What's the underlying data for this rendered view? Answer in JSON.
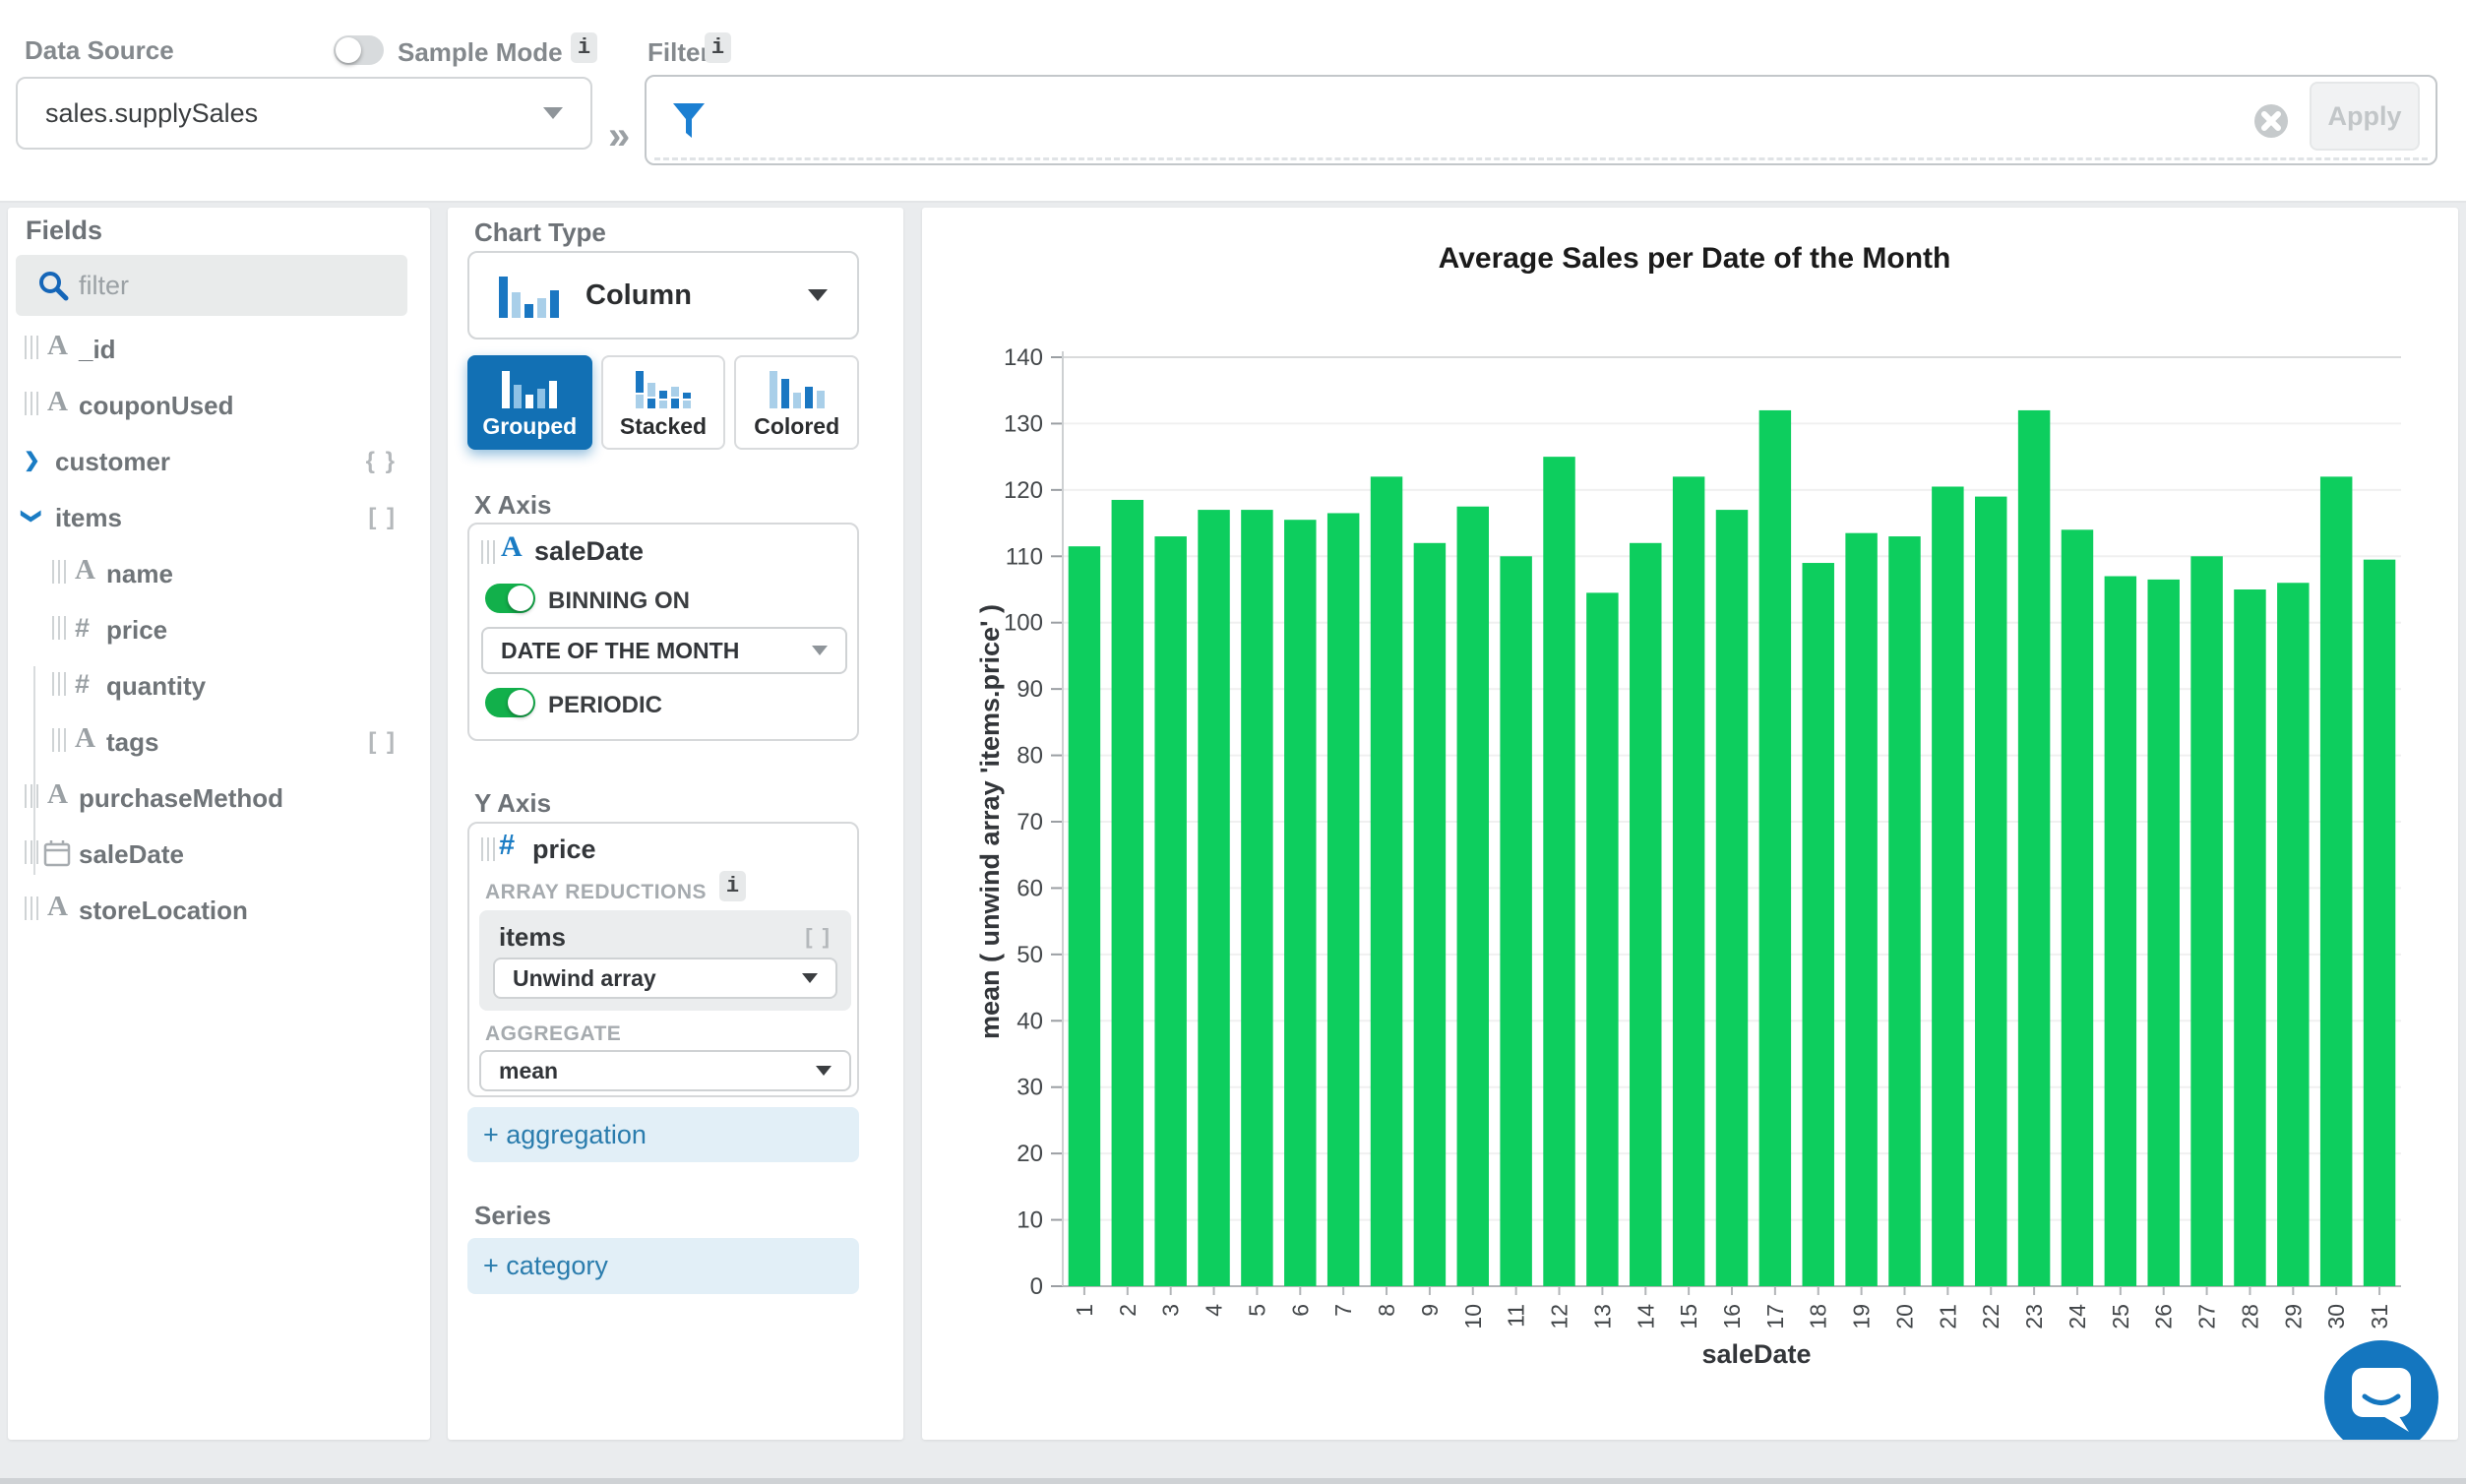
{
  "icons": {
    "info": "i",
    "double_chevron": "»"
  },
  "topbar": {
    "data_source_label": "Data Source",
    "sample_mode_label": "Sample Mode",
    "data_source_value": "sales.supplySales",
    "filters_label": "Filters",
    "apply_label": "Apply"
  },
  "fields_panel": {
    "title": "Fields",
    "filter_placeholder": "filter",
    "fields": [
      {
        "name": "_id",
        "type": "string",
        "indent": 0
      },
      {
        "name": "couponUsed",
        "type": "string",
        "indent": 0
      },
      {
        "name": "customer",
        "type": "object",
        "indent": 0,
        "chevron": "collapsed",
        "suffix": "{ }"
      },
      {
        "name": "items",
        "type": "array",
        "indent": 0,
        "chevron": "expanded",
        "suffix": "[ ]"
      },
      {
        "name": "name",
        "type": "string",
        "indent": 1
      },
      {
        "name": "price",
        "type": "number",
        "indent": 1
      },
      {
        "name": "quantity",
        "type": "number",
        "indent": 1
      },
      {
        "name": "tags",
        "type": "string",
        "indent": 1,
        "suffix": "[ ]"
      },
      {
        "name": "purchaseMethod",
        "type": "string",
        "indent": 0
      },
      {
        "name": "saleDate",
        "type": "date",
        "indent": 0
      },
      {
        "name": "storeLocation",
        "type": "string",
        "indent": 0
      }
    ]
  },
  "builder_panel": {
    "chart_type_label": "Chart Type",
    "chart_type_value": "Column",
    "grouped_label": "Grouped",
    "stacked_label": "Stacked",
    "colored_label": "Colored",
    "x_axis_label": "X Axis",
    "x_field": "saleDate",
    "binning_label": "BINNING ON",
    "binning_value": "DATE OF THE MONTH",
    "periodic_label": "PERIODIC",
    "y_axis_label": "Y Axis",
    "y_field": "price",
    "array_reductions_label": "ARRAY REDUCTIONS",
    "reduction_field": "items",
    "reduction_field_suffix": "[ ]",
    "reduction_value": "Unwind array",
    "aggregate_label": "AGGREGATE",
    "aggregate_value": "mean",
    "add_aggregation_label": "+ aggregation",
    "series_label": "Series",
    "add_category_label": "+ category"
  },
  "chart_data": {
    "type": "bar",
    "title": "Average Sales per Date of the Month",
    "xlabel": "saleDate",
    "ylabel": "mean ( unwind array 'items.price' )",
    "categories": [
      "1",
      "2",
      "3",
      "4",
      "5",
      "6",
      "7",
      "8",
      "9",
      "10",
      "11",
      "12",
      "13",
      "14",
      "15",
      "16",
      "17",
      "18",
      "19",
      "20",
      "21",
      "22",
      "23",
      "24",
      "25",
      "26",
      "27",
      "28",
      "29",
      "30",
      "31"
    ],
    "values": [
      111.5,
      118.5,
      113,
      117,
      117,
      115.5,
      116.5,
      122,
      112,
      117.5,
      110,
      125,
      104.5,
      112,
      122,
      117,
      132,
      109,
      113.5,
      113,
      120.5,
      119,
      132,
      114,
      107,
      106.5,
      110,
      105,
      106,
      122,
      109.5
    ],
    "ylim": [
      0,
      140
    ],
    "ytick_step": 10,
    "grid": true,
    "legend": false,
    "bar_color": "#0dce5e"
  },
  "colors": {
    "accent_blue": "#1270b4",
    "link_blue": "#2a7cad",
    "toggle_green": "#12b04b",
    "bar_green": "#0dce5e",
    "intercom_blue": "#1476bf"
  }
}
